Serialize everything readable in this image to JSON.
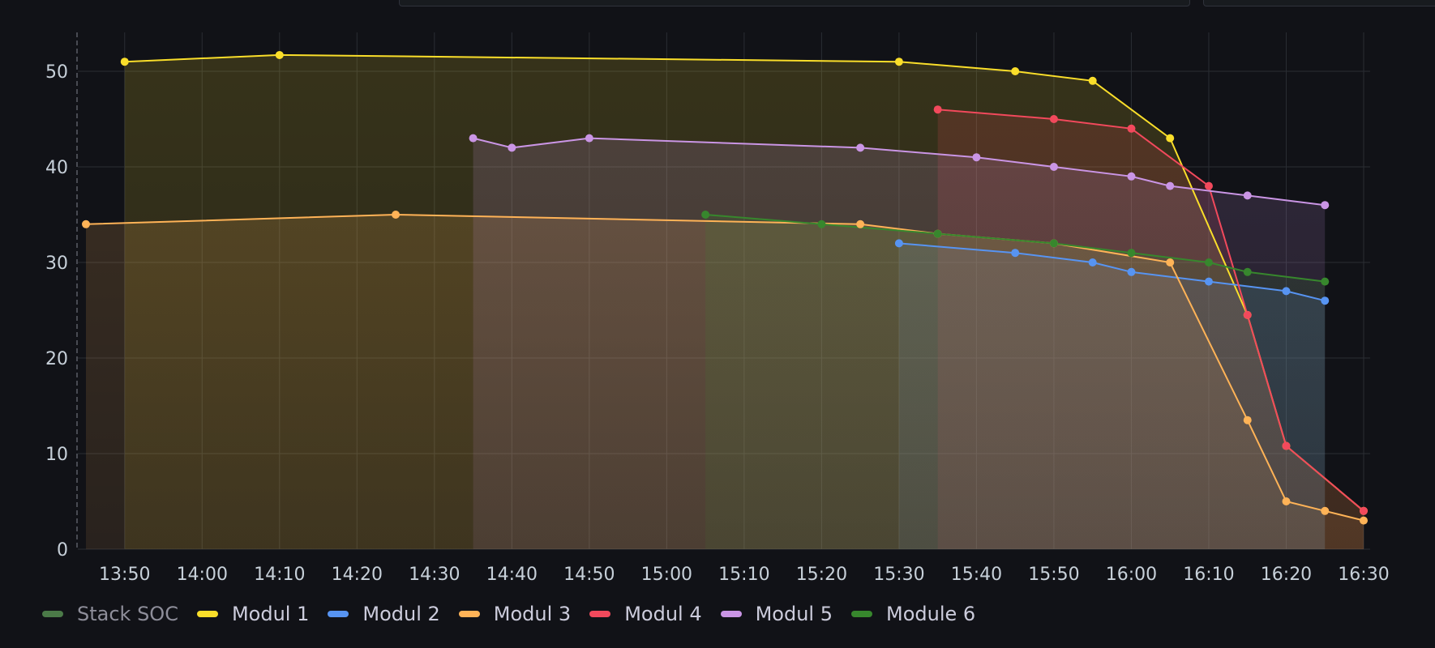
{
  "chart_data": {
    "type": "line",
    "title": "",
    "xlabel": "",
    "ylabel": "",
    "x_range": [
      "13:45",
      "16:30"
    ],
    "ylim": [
      0,
      54
    ],
    "y_ticks": [
      0,
      10,
      20,
      30,
      40,
      50
    ],
    "x_ticks": [
      "13:50",
      "14:00",
      "14:10",
      "14:20",
      "14:30",
      "14:40",
      "14:50",
      "15:00",
      "15:10",
      "15:20",
      "15:30",
      "15:40",
      "15:50",
      "16:00",
      "16:10",
      "16:20",
      "16:30"
    ],
    "grid": true,
    "legend_position": "bottom-left",
    "series": [
      {
        "name": "Stack SOC",
        "color": "#73bf69",
        "hidden": true,
        "points": []
      },
      {
        "name": "Modul 1",
        "color": "#fade2a",
        "points": [
          [
            "13:50",
            51
          ],
          [
            "14:10",
            51.7
          ],
          [
            "15:30",
            51
          ],
          [
            "15:45",
            50
          ],
          [
            "15:55",
            49
          ],
          [
            "16:05",
            43
          ],
          [
            "16:15",
            24.5
          ],
          [
            "16:20",
            10.8
          ],
          [
            "16:30",
            4
          ]
        ]
      },
      {
        "name": "Modul 2",
        "color": "#5794f2",
        "points": [
          [
            "15:30",
            32
          ],
          [
            "15:45",
            31
          ],
          [
            "15:55",
            30
          ],
          [
            "16:00",
            29
          ],
          [
            "16:10",
            28
          ],
          [
            "16:20",
            27
          ],
          [
            "16:25",
            26
          ]
        ]
      },
      {
        "name": "Modul 3",
        "color": "#ffb357",
        "points": [
          [
            "13:45",
            34
          ],
          [
            "14:25",
            35
          ],
          [
            "15:25",
            34
          ],
          [
            "15:35",
            33
          ],
          [
            "15:50",
            32
          ],
          [
            "16:05",
            30
          ],
          [
            "16:15",
            13.5
          ],
          [
            "16:20",
            5
          ],
          [
            "16:25",
            4
          ],
          [
            "16:30",
            3
          ]
        ]
      },
      {
        "name": "Modul 4",
        "color": "#f2495c",
        "points": [
          [
            "15:35",
            46
          ],
          [
            "15:50",
            45
          ],
          [
            "16:00",
            44
          ],
          [
            "16:10",
            38
          ],
          [
            "16:15",
            24.5
          ],
          [
            "16:20",
            10.8
          ],
          [
            "16:30",
            4
          ]
        ]
      },
      {
        "name": "Modul 5",
        "color": "#ca95e5",
        "points": [
          [
            "14:35",
            43
          ],
          [
            "14:40",
            42
          ],
          [
            "14:50",
            43
          ],
          [
            "15:25",
            42
          ],
          [
            "15:40",
            41
          ],
          [
            "15:50",
            40
          ],
          [
            "16:00",
            39
          ],
          [
            "16:05",
            38
          ],
          [
            "16:15",
            37
          ],
          [
            "16:25",
            36
          ]
        ]
      },
      {
        "name": "Module 6",
        "color": "#37872d",
        "points": [
          [
            "15:05",
            35
          ],
          [
            "15:20",
            34
          ],
          [
            "15:35",
            33
          ],
          [
            "15:50",
            32
          ],
          [
            "16:00",
            31
          ],
          [
            "16:10",
            30
          ],
          [
            "16:15",
            29
          ],
          [
            "16:25",
            28
          ]
        ]
      }
    ]
  },
  "legend": {
    "items": [
      {
        "label": "Stack SOC",
        "color": "#73bf69"
      },
      {
        "label": "Modul 1",
        "color": "#fade2a"
      },
      {
        "label": "Modul 2",
        "color": "#5794f2"
      },
      {
        "label": "Modul 3",
        "color": "#ffb357"
      },
      {
        "label": "Modul 4",
        "color": "#f2495c"
      },
      {
        "label": "Modul 5",
        "color": "#ca95e5"
      },
      {
        "label": "Module 6",
        "color": "#37872d"
      }
    ]
  }
}
